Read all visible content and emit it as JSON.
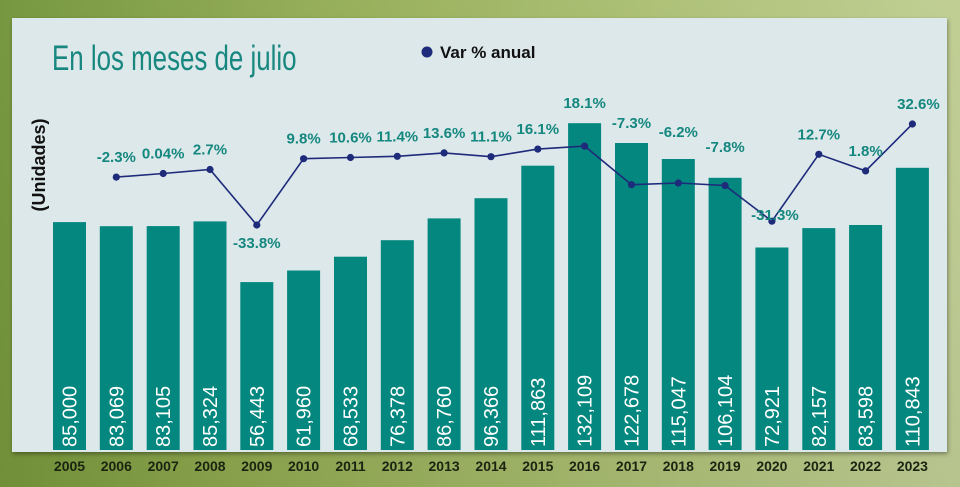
{
  "chart_data": {
    "type": "bar",
    "title": "En los meses de julio",
    "ylabel": "(Unidades)",
    "categories": [
      "2005",
      "2006",
      "2007",
      "2008",
      "2009",
      "2010",
      "2011",
      "2012",
      "2013",
      "2014",
      "2015",
      "2016",
      "2017",
      "2018",
      "2019",
      "2020",
      "2021",
      "2022",
      "2023"
    ],
    "series": [
      {
        "type": "bar",
        "color": "#03877f",
        "values": [
          85000,
          83069,
          83105,
          85324,
          56443,
          61960,
          68533,
          76378,
          86760,
          96366,
          111863,
          132109,
          122678,
          115047,
          106104,
          72921,
          82157,
          83598,
          110843
        ],
        "data_labels": [
          "85,000",
          "83,069",
          "83,105",
          "85,324",
          "56,443",
          "61,960",
          "68,533",
          "76,378",
          "86,760",
          "96,366",
          "111,863",
          "132,109",
          "122,678",
          "115,047",
          "106,104",
          "72,921",
          "82,157",
          "83,598",
          "110,843"
        ]
      },
      {
        "name": "Var % anual",
        "type": "line",
        "marker": "dot",
        "color": "#1e2a7a",
        "values": [
          null,
          -2.3,
          0.04,
          2.7,
          -33.8,
          9.8,
          10.6,
          11.4,
          13.6,
          11.1,
          16.1,
          18.1,
          -7.3,
          -6.2,
          -7.8,
          -31.3,
          12.7,
          1.8,
          32.6
        ],
        "data_labels": [
          null,
          "-2.3%",
          "0.04%",
          "2.7%",
          "-33.8%",
          "9.8%",
          "10.6%",
          "11.4%",
          "13.6%",
          "11.1%",
          "16.1%",
          "18.1%",
          "-7.3%",
          "-6.2%",
          "-7.8%",
          "-31.3%",
          "12.7%",
          "1.8%",
          "32.6%"
        ]
      }
    ],
    "legend": {
      "position": "top"
    },
    "grid": false
  },
  "colors": {
    "frame": "#8fa94f",
    "panel": "#dde8ea",
    "title": "#178780",
    "bar_value_text": "#ffffff",
    "pct_label": "#14877f",
    "axis_text": "#1a2410"
  }
}
